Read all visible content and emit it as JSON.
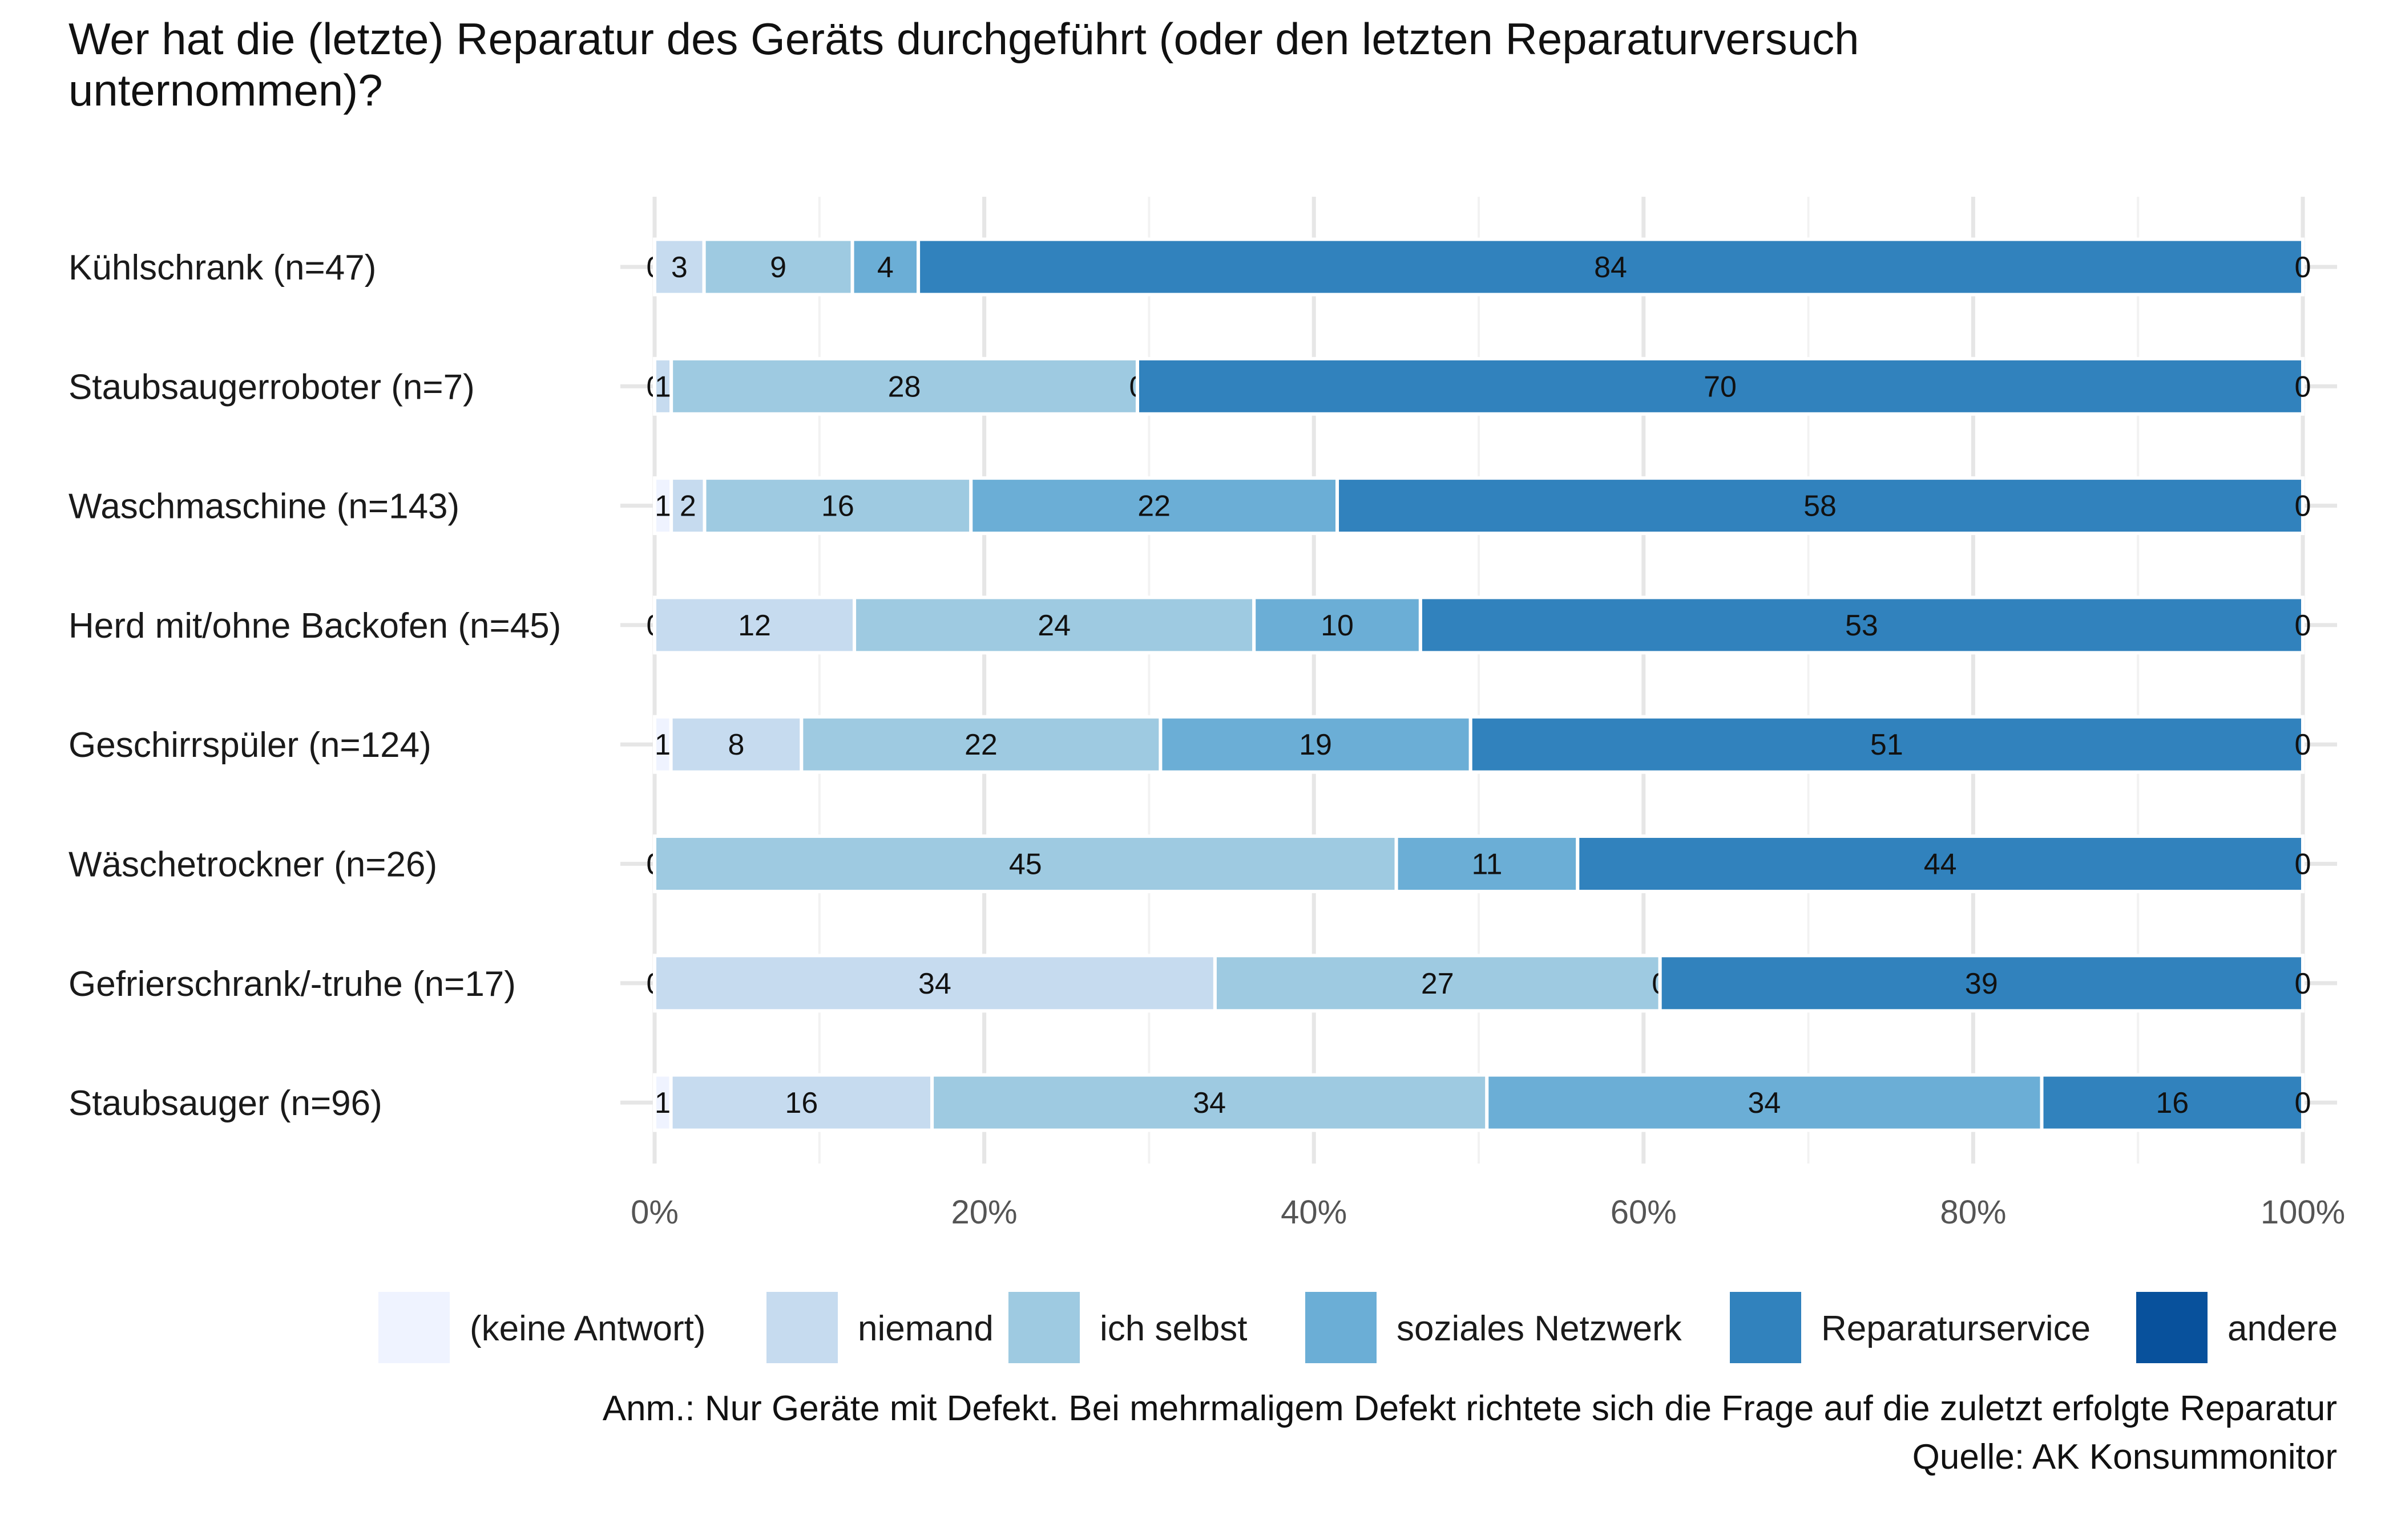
{
  "chart_data": {
    "type": "bar",
    "orientation": "horizontal",
    "stacked": true,
    "title": "Wer hat die (letzte) Reparatur des Geräts durchgeführt (oder den letzten Reparaturversuch unternommen)?",
    "title_lines": [
      "Wer hat die (letzte) Reparatur des Geräts durchgeführt (oder den letzten Reparaturversuch",
      "unternommen)?"
    ],
    "categories": [
      "Kühlschrank (n=47)",
      "Staubsaugerroboter (n=7)",
      "Waschmaschine (n=143)",
      "Herd mit/ohne Backofen (n=45)",
      "Geschirrspüler (n=124)",
      "Wäschetrockner (n=26)",
      "Gefrierschrank/-truhe (n=17)",
      "Staubsauger (n=96)"
    ],
    "series": [
      {
        "name": "(keine Antwort)",
        "color": "#eff3ff",
        "values": [
          0,
          0,
          1,
          0,
          1,
          0,
          0,
          1
        ]
      },
      {
        "name": "niemand",
        "color": "#c6dbef",
        "values": [
          3,
          1,
          2,
          12,
          8,
          0,
          34,
          16
        ]
      },
      {
        "name": "ich selbst",
        "color": "#9ecae1",
        "values": [
          9,
          28,
          16,
          24,
          22,
          45,
          27,
          34
        ]
      },
      {
        "name": "soziales Netzwerk",
        "color": "#6baed6",
        "values": [
          4,
          0,
          22,
          10,
          19,
          11,
          0,
          34
        ]
      },
      {
        "name": "Reparaturservice",
        "color": "#3182bd",
        "values": [
          84,
          70,
          58,
          53,
          51,
          44,
          39,
          16
        ]
      },
      {
        "name": "andere",
        "color": "#08519c",
        "values": [
          0,
          0,
          0,
          0,
          0,
          0,
          0,
          0
        ]
      }
    ],
    "xlim": [
      0,
      100
    ],
    "x_ticks": [
      "0%",
      "20%",
      "40%",
      "60%",
      "80%",
      "100%"
    ],
    "legend_position": "bottom",
    "grid": true,
    "caption_lines": [
      "Anm.: Nur Geräte mit Defekt. Bei mehrmaligem Defekt richtete sich die Frage auf die zuletzt erfolgte Reparatur",
      "Quelle: AK Konsummonitor"
    ]
  }
}
